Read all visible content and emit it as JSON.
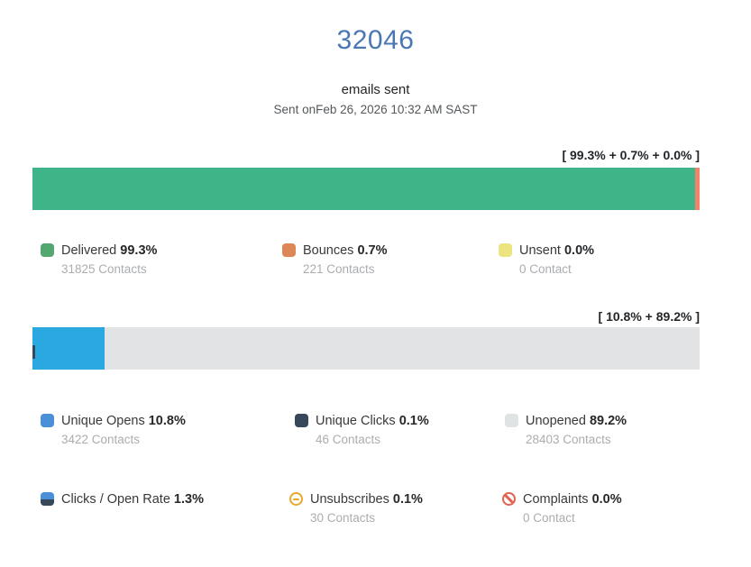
{
  "header": {
    "count": "32046",
    "subtitle": "emails sent",
    "sent_info": "Sent onFeb 26, 2026 10:32 AM SAST"
  },
  "colors": {
    "title_blue": "#4a78b2",
    "delivered_bar": "#3eb488",
    "bounces_bar": "#f5826a",
    "unsent_bar": "#ece47e",
    "delivered_swatch": "#55a772",
    "bounces_swatch": "#dd8757",
    "unsent_swatch": "#ece47e",
    "opens_bar": "#29a9e0",
    "unopened_bar": "#e1e3e4",
    "opens_swatch": "#4a90d9",
    "clicks_swatch": "#36485a",
    "unopened_swatch": "#e0e3e4",
    "unsubscribes_icon": "#e9a82c",
    "complaints_icon": "#e2604d",
    "contacts_gray": "#aaadb0"
  },
  "delivery": {
    "bracket": "[ 99.3% + 0.7% + 0.0% ]",
    "bar": {
      "delivered_pct": 99.3,
      "bounces_pct": 0.7,
      "unsent_pct": 0.0
    },
    "legend": [
      {
        "label": "Delivered",
        "percent": "99.3%",
        "contacts": "31825 Contacts"
      },
      {
        "label": "Bounces",
        "percent": "0.7%",
        "contacts": "221 Contacts"
      },
      {
        "label": "Unsent",
        "percent": "0.0%",
        "contacts": "0 Contact"
      }
    ]
  },
  "engagement": {
    "bracket": "[ 10.8% + 89.2% ]",
    "bar": {
      "opens_pct": 10.8,
      "unopened_pct": 89.2
    },
    "legend": [
      {
        "label": "Unique Opens",
        "percent": "10.8%",
        "contacts": "3422 Contacts"
      },
      {
        "label": "Unique Clicks",
        "percent": "0.1%",
        "contacts": "46 Contacts"
      },
      {
        "label": "Unopened",
        "percent": "89.2%",
        "contacts": "28403 Contacts"
      }
    ]
  },
  "metrics": {
    "legend": [
      {
        "label": "Clicks / Open Rate",
        "percent": "1.3%",
        "contacts": ""
      },
      {
        "label": "Unsubscribes",
        "percent": "0.1%",
        "contacts": "30 Contacts"
      },
      {
        "label": "Complaints",
        "percent": "0.0%",
        "contacts": "0 Contact"
      }
    ]
  },
  "chart_data": [
    {
      "type": "bar",
      "title": "[ 99.3% + 0.7% + 0.0% ]",
      "series": [
        {
          "name": "Delivered",
          "values": [
            99.3
          ]
        },
        {
          "name": "Bounces",
          "values": [
            0.7
          ]
        },
        {
          "name": "Unsent",
          "values": [
            0.0
          ]
        }
      ],
      "xlabel": "",
      "ylabel": "",
      "xlim": [
        0,
        100
      ],
      "legend_position": "below",
      "grid": false
    },
    {
      "type": "bar",
      "title": "[ 10.8% + 89.2% ]",
      "series": [
        {
          "name": "Unique Opens",
          "values": [
            10.8
          ]
        },
        {
          "name": "Unique Clicks",
          "values": [
            0.1
          ]
        },
        {
          "name": "Unopened",
          "values": [
            89.2
          ]
        }
      ],
      "xlabel": "",
      "ylabel": "",
      "xlim": [
        0,
        100
      ],
      "legend_position": "below",
      "grid": false
    }
  ]
}
